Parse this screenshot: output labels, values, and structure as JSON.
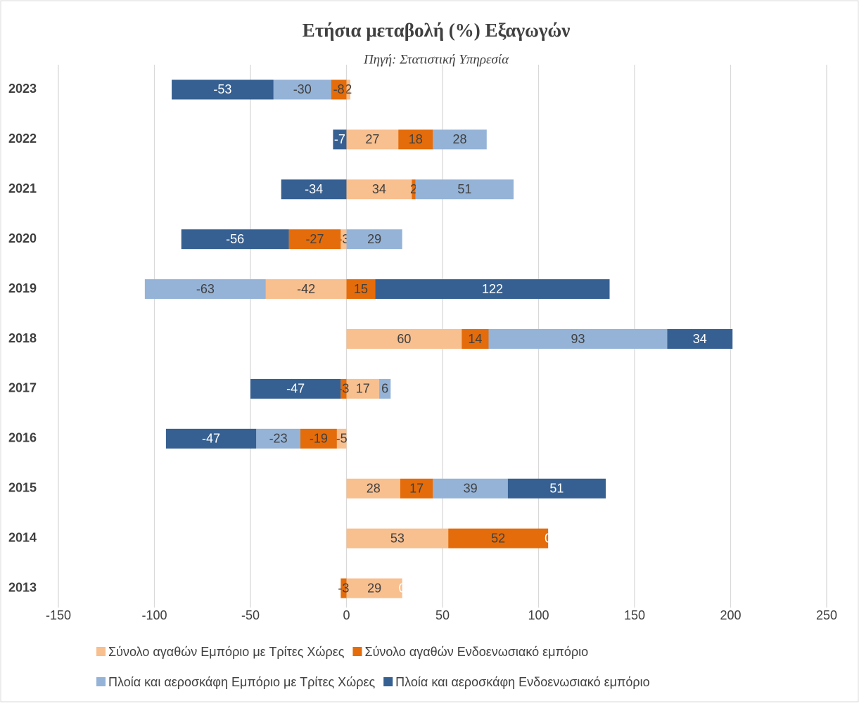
{
  "chart_data": {
    "type": "stacked_barh",
    "title": "Ετήσια μεταβολή (%) Εξαγωγών",
    "subtitle": "Πηγή: Στατιστική Υπηρεσία",
    "categories": [
      "2023",
      "2022",
      "2021",
      "2020",
      "2019",
      "2018",
      "2017",
      "2016",
      "2015",
      "2014",
      "2013"
    ],
    "series": [
      {
        "name": "Σύνολο αγαθών Εμπόριο με Τρίτες Χώρες",
        "color": "#f8bf8f",
        "label_color": "#404040",
        "values": [
          2,
          27,
          34,
          -3,
          -42,
          60,
          17,
          -5,
          28,
          53,
          29
        ]
      },
      {
        "name": "Σύνολο αγαθών Ενδοενωσιακό εμπόριο",
        "color": "#e46c0a",
        "label_color": "#404040",
        "values": [
          -8,
          18,
          2,
          -27,
          15,
          14,
          -3,
          -19,
          17,
          52,
          -3
        ]
      },
      {
        "name": "Πλοία και αεροσκάφη Εμπόριο με Τρίτες Χώρες",
        "color": "#95b3d7",
        "label_color": "#404040",
        "values": [
          -30,
          28,
          51,
          29,
          -63,
          93,
          6,
          -23,
          39,
          null,
          null
        ]
      },
      {
        "name": "Πλοία και αεροσκάφη Ενδοενωσιακό εμπόριο",
        "color": "#366092",
        "label_color": "#ffffff",
        "values": [
          -53,
          -7,
          -34,
          -56,
          122,
          34,
          -47,
          -47,
          51,
          0,
          0
        ]
      }
    ],
    "xlim": [
      -150,
      250
    ],
    "xticks": [
      -150,
      -100,
      -50,
      0,
      50,
      100,
      150,
      200,
      250
    ],
    "grid": true
  }
}
